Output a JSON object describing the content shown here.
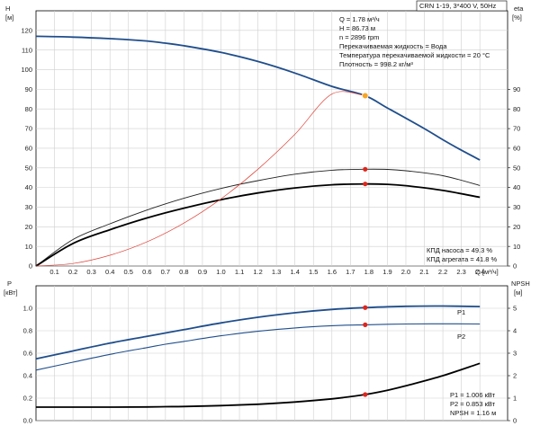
{
  "chart_data": [
    {
      "type": "line",
      "header_box": "CRN 1-19, 3*400 V, 50Hz",
      "xlabel": "Q [м³/ч]",
      "xticks": [
        "0.1",
        "0.2",
        "0.3",
        "0.4",
        "0.5",
        "0.6",
        "0.7",
        "0.8",
        "0.9",
        "1.0",
        "1.1",
        "1.2",
        "1.3",
        "1.4",
        "1.5",
        "1.6",
        "1.7",
        "1.8",
        "1.9",
        "2.0",
        "2.1",
        "2.2",
        "2.3",
        "2.4"
      ],
      "xlim": [
        0,
        2.55
      ],
      "left_axis": {
        "name": "H",
        "unit": "[м]",
        "ticks": [
          "0",
          "10",
          "20",
          "30",
          "40",
          "50",
          "60",
          "70",
          "80",
          "90",
          "100",
          "110",
          "120"
        ],
        "ylim": [
          0,
          130
        ]
      },
      "right_axis": {
        "name": "eta",
        "unit": "[%]",
        "ticks": [
          "0",
          "10",
          "20",
          "30",
          "40",
          "50",
          "60",
          "70",
          "80",
          "90"
        ],
        "ylim": [
          0,
          130
        ]
      },
      "info_lines": [
        "Q = 1.78 м³/ч",
        "H = 86.73 м",
        "n = 2896 rpm",
        "Перекачиваемая жидкость = Вода",
        "Температура перекачиваемой жидкости = 20 °C",
        "Плотность = 998.2 кг/м³"
      ],
      "efficiency_lines": [
        "КПД насоса = 49.3 %",
        "КПД агрегата = 41.8 %"
      ],
      "series": [
        {
          "key": "H",
          "color": "#1f4e8c",
          "x": [
            0,
            0.2,
            0.4,
            0.6,
            0.7,
            0.8,
            1.0,
            1.2,
            1.4,
            1.6,
            1.78,
            1.9,
            2.1,
            2.2,
            2.3,
            2.4
          ],
          "y": [
            117,
            116.6,
            115.8,
            114.6,
            113.5,
            112.2,
            108.8,
            104.2,
            98.3,
            91.5,
            86.73,
            80.5,
            70,
            64.3,
            59,
            54
          ]
        },
        {
          "key": "eta_pump",
          "color": "#222222",
          "x": [
            0,
            0.2,
            0.4,
            0.6,
            0.8,
            1.0,
            1.2,
            1.4,
            1.6,
            1.78,
            1.9,
            2.0,
            2.2,
            2.4
          ],
          "y": [
            0,
            13.5,
            21.5,
            28.5,
            34.5,
            39.5,
            43.5,
            46.8,
            48.8,
            49.3,
            49.2,
            48.5,
            46,
            41
          ]
        },
        {
          "key": "eta_unit",
          "color": "#000000",
          "x": [
            0,
            0.2,
            0.4,
            0.6,
            0.8,
            1.0,
            1.2,
            1.4,
            1.6,
            1.78,
            1.9,
            2.0,
            2.2,
            2.4
          ],
          "y": [
            0,
            11.5,
            18.5,
            24.5,
            29.5,
            33.8,
            37.2,
            39.8,
            41.4,
            41.8,
            41.6,
            40.9,
            38.5,
            35
          ]
        },
        {
          "key": "system",
          "color": "#e0443a",
          "x": [
            0,
            0.2,
            0.4,
            0.6,
            0.8,
            1.0,
            1.2,
            1.4,
            1.6,
            1.78
          ],
          "y": [
            0,
            1.3,
            5.5,
            12.3,
            21.9,
            34.2,
            49.3,
            67.1,
            87.6,
            86.73
          ]
        }
      ],
      "markers": [
        {
          "x": 1.78,
          "y": 86.73,
          "color": "#f5a623"
        },
        {
          "x": 1.78,
          "y": 49.3,
          "color": "#e0251b"
        },
        {
          "x": 1.78,
          "y": 41.8,
          "color": "#e0251b"
        }
      ]
    },
    {
      "type": "line",
      "xlim": [
        0,
        2.55
      ],
      "left_axis": {
        "name": "P",
        "unit": "[кВт]",
        "ticks": [
          "0.0",
          "0.2",
          "0.4",
          "0.6",
          "0.8",
          "1.0"
        ],
        "ylim": [
          0,
          1.2
        ]
      },
      "right_axis": {
        "name": "NPSH",
        "unit": "[м]",
        "ticks": [
          "0",
          "1",
          "2",
          "3",
          "4",
          "5"
        ],
        "ylim": [
          0,
          6
        ]
      },
      "info_lines": [
        "P1 = 1.006 кВт",
        "P2 = 0.853 кВт",
        "NPSH = 1.16 м"
      ],
      "series": [
        {
          "name": "P1",
          "color": "#1f4e8c",
          "x": [
            0,
            0.2,
            0.4,
            0.6,
            0.7,
            0.8,
            1.0,
            1.2,
            1.4,
            1.6,
            1.78,
            2.0,
            2.2,
            2.4
          ],
          "y": [
            0.55,
            0.62,
            0.69,
            0.75,
            0.78,
            0.81,
            0.87,
            0.92,
            0.96,
            0.99,
            1.006,
            1.018,
            1.02,
            1.015
          ]
        },
        {
          "name": "P2",
          "color": "#1f4e8c",
          "x": [
            0,
            0.2,
            0.4,
            0.6,
            0.7,
            0.8,
            1.0,
            1.2,
            1.4,
            1.6,
            1.78,
            2.0,
            2.2,
            2.4
          ],
          "y": [
            0.45,
            0.52,
            0.59,
            0.65,
            0.68,
            0.705,
            0.755,
            0.795,
            0.825,
            0.845,
            0.853,
            0.86,
            0.862,
            0.86
          ]
        },
        {
          "name": "NPSH",
          "color": "#000000",
          "x": [
            0,
            0.4,
            0.6,
            0.7,
            0.8,
            1.0,
            1.2,
            1.4,
            1.6,
            1.78,
            1.9,
            2.0,
            2.2,
            2.4
          ],
          "y": [
            0.6,
            0.6,
            0.61,
            0.62,
            0.63,
            0.67,
            0.73,
            0.83,
            0.97,
            1.16,
            1.35,
            1.55,
            2.0,
            2.55
          ]
        }
      ],
      "markers": [
        {
          "x": 1.78,
          "y": 1.006,
          "color": "#e0251b"
        },
        {
          "x": 1.78,
          "y": 0.853,
          "color": "#e0251b"
        },
        {
          "x": 1.78,
          "y": 0.232,
          "color": "#e0251b"
        }
      ]
    }
  ]
}
